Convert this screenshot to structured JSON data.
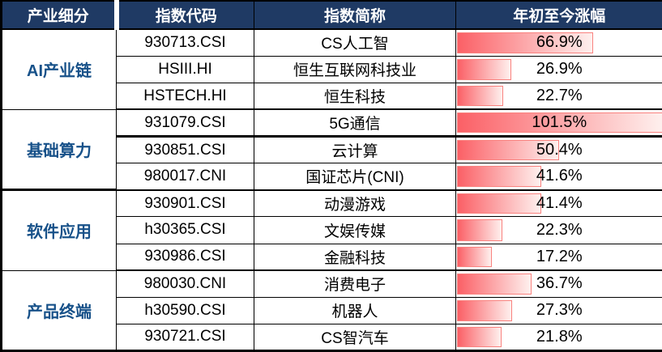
{
  "table": {
    "headers": [
      "产业细分",
      "指数代码",
      "指数简称",
      "年初至今涨幅"
    ],
    "groups": [
      {
        "name": "AI产业链",
        "rows": [
          {
            "code": "930713.CSI",
            "name": "CS人工智",
            "ytd": "66.9%",
            "value": 66.9
          },
          {
            "code": "HSIII.HI",
            "name": "恒生互联网科技业",
            "ytd": "26.9%",
            "value": 26.9
          },
          {
            "code": "HSTECH.HI",
            "name": "恒生科技",
            "ytd": "22.7%",
            "value": 22.7
          }
        ]
      },
      {
        "name": "基础算力",
        "rows": [
          {
            "code": "931079.CSI",
            "name": "5G通信",
            "ytd": "101.5%",
            "value": 101.5
          },
          {
            "code": "930851.CSI",
            "name": "云计算",
            "ytd": "50.4%",
            "value": 50.4
          },
          {
            "code": "980017.CNI",
            "name": "国证芯片(CNI)",
            "ytd": "41.6%",
            "value": 41.6
          }
        ]
      },
      {
        "name": "软件应用",
        "rows": [
          {
            "code": "930901.CSI",
            "name": "动漫游戏",
            "ytd": "41.4%",
            "value": 41.4
          },
          {
            "code": "h30365.CSI",
            "name": "文娱传媒",
            "ytd": "22.3%",
            "value": 22.3
          },
          {
            "code": "930986.CSI",
            "name": "金融科技",
            "ytd": "17.2%",
            "value": 17.2
          }
        ]
      },
      {
        "name": "产品终端",
        "rows": [
          {
            "code": "980030.CNI",
            "name": "消费电子",
            "ytd": "36.7%",
            "value": 36.7
          },
          {
            "code": "h30590.CSI",
            "name": "机器人",
            "ytd": "27.3%",
            "value": 27.3
          },
          {
            "code": "930721.CSI",
            "name": "CS智汽车",
            "ytd": "21.8%",
            "value": 21.8
          }
        ]
      }
    ]
  },
  "colors": {
    "header_bg": "#1f3a64",
    "header_text": "#ffffff",
    "group_text": "#175189",
    "bar_start": "#fb6066",
    "bar_end": "#fef0ee",
    "bar_border": "#f9827f",
    "grid": "#000000"
  },
  "chart_data": {
    "type": "bar",
    "orientation": "horizontal",
    "title": "年初至今涨幅",
    "columns": [
      "产业细分",
      "指数代码",
      "指数简称",
      "年初至今涨幅"
    ],
    "group_labels": [
      "AI产业链",
      "基础算力",
      "软件应用",
      "产品终端"
    ],
    "group_sizes": [
      3,
      3,
      3,
      3
    ],
    "index_codes": [
      "930713.CSI",
      "HSIII.HI",
      "HSTECH.HI",
      "931079.CSI",
      "930851.CSI",
      "980017.CNI",
      "930901.CSI",
      "h30365.CSI",
      "930986.CSI",
      "980030.CNI",
      "h30590.CSI",
      "930721.CSI"
    ],
    "categories": [
      "CS人工智",
      "恒生互联网科技业",
      "恒生科技",
      "5G通信",
      "云计算",
      "国证芯片(CNI)",
      "动漫游戏",
      "文娱传媒",
      "金融科技",
      "消费电子",
      "机器人",
      "CS智汽车"
    ],
    "values": [
      66.9,
      26.9,
      22.7,
      101.5,
      50.4,
      41.6,
      41.4,
      22.3,
      17.2,
      36.7,
      27.3,
      21.8
    ],
    "value_suffix": "%",
    "xlim": [
      0,
      101.5
    ],
    "grid": false,
    "legend": false
  }
}
